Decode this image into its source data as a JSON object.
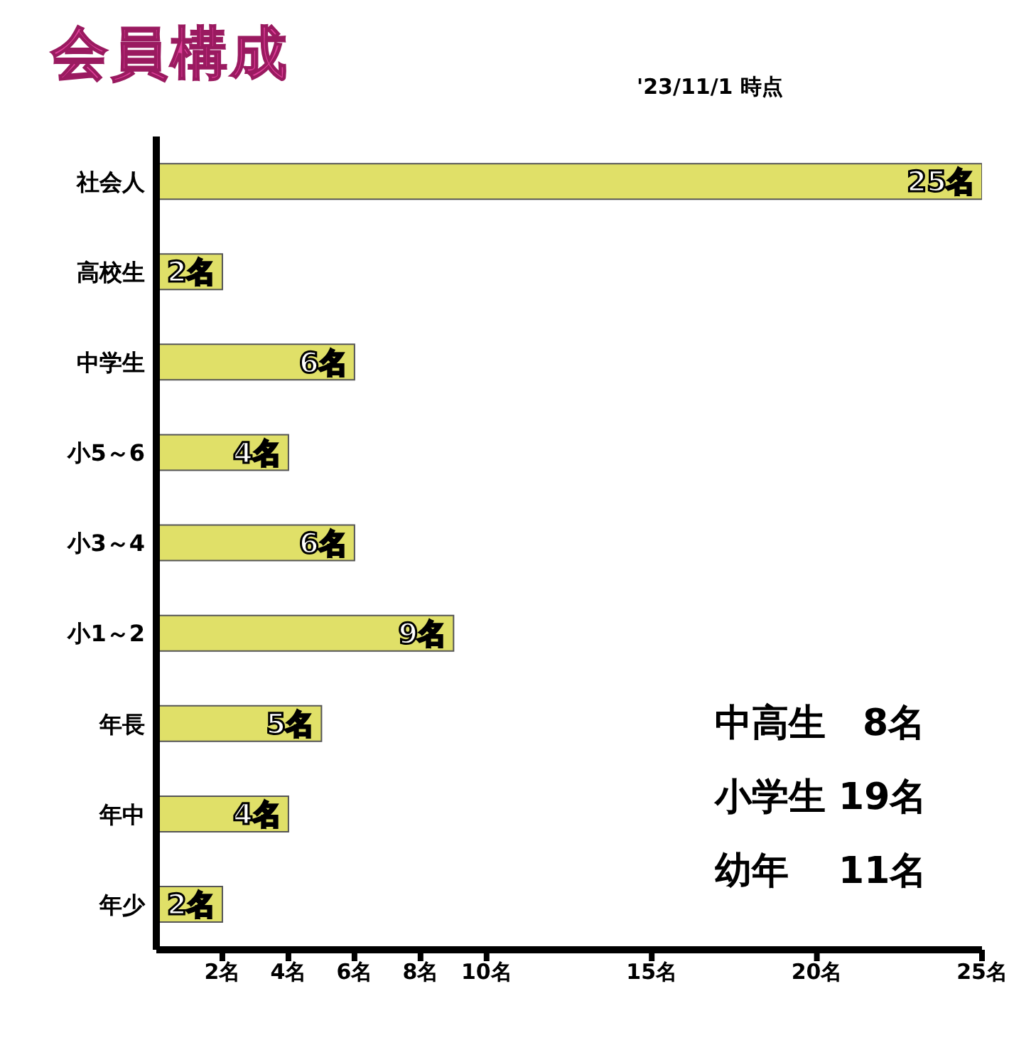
{
  "chart_data": {
    "type": "bar",
    "orientation": "horizontal",
    "title": "会員構成",
    "categories": [
      "社会人",
      "高校生",
      "中学生",
      "小5～6",
      "小3～4",
      "小1～2",
      "年長",
      "年中",
      "年少"
    ],
    "values": [
      25,
      2,
      6,
      4,
      6,
      9,
      5,
      4,
      2
    ],
    "value_labels": [
      "25名",
      "2名",
      "6名",
      "4名",
      "6名",
      "9名",
      "5名",
      "4名",
      "2名"
    ],
    "color": "#e0e068",
    "xlim": [
      0,
      25
    ],
    "xticks": [
      {
        "value": 2,
        "label": "2名"
      },
      {
        "value": 4,
        "label": "4名"
      },
      {
        "value": 6,
        "label": "6名"
      },
      {
        "value": 8,
        "label": "8名"
      },
      {
        "value": 10,
        "label": "10名"
      },
      {
        "value": 15,
        "label": "15名"
      },
      {
        "value": 20,
        "label": "20名"
      },
      {
        "value": 25,
        "label": "25名"
      }
    ],
    "annotations": [
      "'23/11/1 時点",
      "中高生　8名",
      "小学生 19名",
      "幼年　 11名"
    ]
  }
}
